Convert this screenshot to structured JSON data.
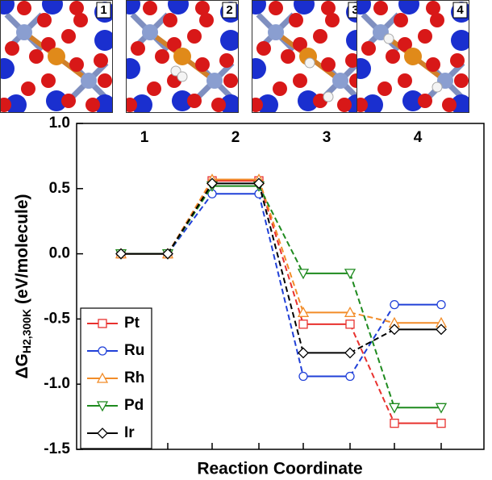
{
  "panel_labels": [
    "1",
    "2",
    "3",
    "4"
  ],
  "chart_data": {
    "type": "energy-levels",
    "categories": [
      "1",
      "2",
      "3",
      "4"
    ],
    "xlabel": "Reaction Coordinate",
    "ylabel": "ΔG",
    "ylabel_sub": "H2,300K",
    "ylabel_unit": " (eV/molecule)",
    "ylim": [
      -1.5,
      1.0
    ],
    "yticks": [
      {
        "value": 1.0,
        "label": "1.0"
      },
      {
        "value": 0.5,
        "label": "0.5"
      },
      {
        "value": 0.0,
        "label": "0.0"
      },
      {
        "value": -0.5,
        "label": "-0.5"
      },
      {
        "value": -1.0,
        "label": "-1.0"
      },
      {
        "value": -1.5,
        "label": "-1.5"
      }
    ],
    "legend": "lower left",
    "series": [
      {
        "name": "Pt",
        "color": "#e8312e",
        "marker": "square",
        "values": [
          0,
          0.56,
          -0.54,
          -1.3
        ]
      },
      {
        "name": "Ru",
        "color": "#2040d8",
        "marker": "circle",
        "values": [
          0,
          0.46,
          -0.94,
          -0.39
        ]
      },
      {
        "name": "Rh",
        "color": "#f28c28",
        "marker": "triangle-up",
        "values": [
          0,
          0.57,
          -0.45,
          -0.53
        ]
      },
      {
        "name": "Pd",
        "color": "#1e8a1e",
        "marker": "triangle-down",
        "values": [
          0,
          0.52,
          -0.15,
          -1.18
        ]
      },
      {
        "name": "Ir",
        "color": "#000000",
        "marker": "diamond",
        "values": [
          0,
          0.54,
          -0.76,
          -0.58
        ]
      }
    ]
  }
}
